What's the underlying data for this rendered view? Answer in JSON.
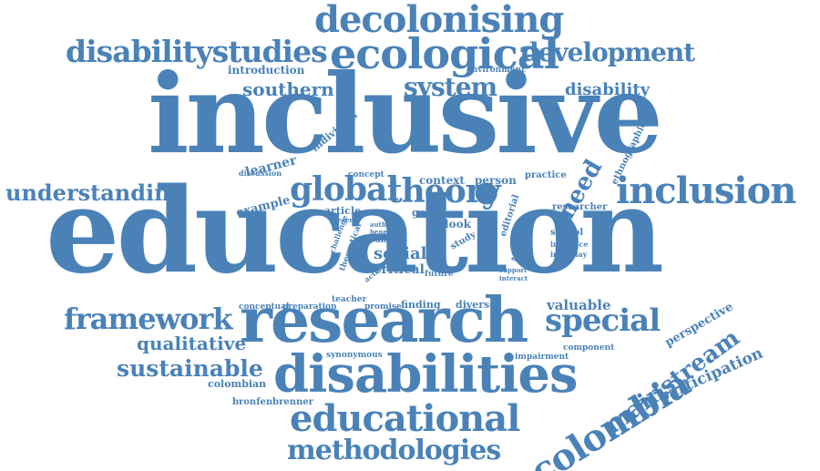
{
  "color": "#4a82b8",
  "words": {
    "education": "education",
    "inclusive": "inclusive",
    "research": "research",
    "disabilities": "disabilities",
    "decolonising": "decolonising",
    "ecological": "ecological",
    "disabilitystudies": "disabilitystudies",
    "development": "development",
    "inclusion": "inclusion",
    "global": "global",
    "theory": "theory",
    "educational": "educational",
    "methodologies": "methodologies",
    "colombia": "colombia",
    "mainstream": "mainstream",
    "special": "special",
    "framework": "framework",
    "understanding": "understanding",
    "system": "system",
    "southern": "southern",
    "disability": "disability",
    "sustainable": "sustainable",
    "qualitative": "qualitative",
    "participation": "participation",
    "perspective": "perspective",
    "valuable": "valuable",
    "need": "need",
    "social": "social",
    "critical": "critical",
    "justice": "justice",
    "learner": "learner",
    "example": "example",
    "individual": "individual",
    "introduction": "introduction",
    "environment": "environment",
    "ethnographic": "ethnographic",
    "context": "context",
    "person": "person",
    "practice": "practice",
    "concept": "concept",
    "discussion": "discussion",
    "researcher": "researcher",
    "school": "school",
    "influence": "influence",
    "interplay": "interplay",
    "article": "article",
    "goal": "goal",
    "look": "look",
    "study": "study",
    "editorial": "editorial",
    "young": "young",
    "theoretical": "theoretical",
    "challenge": "challenge",
    "action": "action",
    "present": "present",
    "author": "author",
    "benefit": "benefit",
    "barrier": "barrier",
    "future": "future",
    "support": "support",
    "interact": "interact",
    "exist": "exist",
    "conceptual": "conceptual",
    "preparation": "preparation",
    "teacher": "teacher",
    "promise": "promise",
    "finding": "finding",
    "diverse": "diverse",
    "synonymous": "synonymous",
    "impairment": "impairment",
    "component": "component",
    "colombian": "colombian",
    "bronfenbrenner": "bronfenbrenner"
  }
}
